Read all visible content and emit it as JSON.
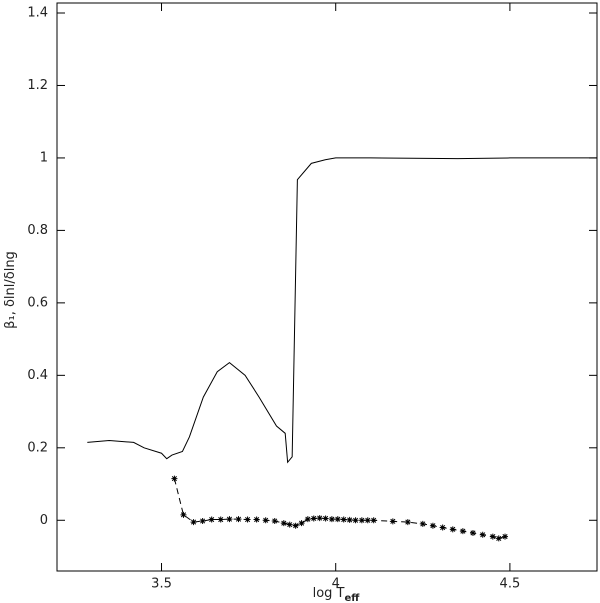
{
  "chart_data": {
    "type": "line",
    "xlabel": "log T",
    "xlabel_sub": "eff",
    "ylabel": "β₁, δlnl/δlng",
    "xlim": [
      3.2,
      4.75
    ],
    "ylim": [
      -0.14,
      1.4
    ],
    "xticks": [
      3.5,
      4,
      4.5
    ],
    "yticks": [
      0,
      0.2,
      0.4,
      0.6,
      0.8,
      1,
      1.2,
      1.4
    ],
    "series": [
      {
        "color": "#000000",
        "line_style": "solid",
        "marker": null,
        "x": [
          3.287,
          3.35,
          3.42,
          3.45,
          3.5,
          3.515,
          3.53,
          3.56,
          3.58,
          3.62,
          3.66,
          3.695,
          3.74,
          3.78,
          3.83,
          3.855,
          3.862,
          3.875,
          3.89,
          3.93,
          3.97,
          4.0,
          4.1,
          4.35,
          4.5,
          4.75
        ],
        "values": [
          0.215,
          0.22,
          0.215,
          0.2,
          0.185,
          0.17,
          0.18,
          0.19,
          0.23,
          0.34,
          0.41,
          0.435,
          0.4,
          0.34,
          0.26,
          0.24,
          0.16,
          0.175,
          0.94,
          0.985,
          0.995,
          1.0,
          1.0,
          0.998,
          1.0,
          1.0
        ]
      },
      {
        "color": "#000000",
        "line_style": "dashed",
        "marker": "*",
        "x": [
          3.537,
          3.563,
          3.592,
          3.618,
          3.644,
          3.67,
          3.695,
          3.721,
          3.747,
          3.773,
          3.799,
          3.825,
          3.851,
          3.868,
          3.885,
          3.902,
          3.92,
          3.937,
          3.954,
          3.971,
          3.989,
          4.006,
          4.023,
          4.04,
          4.057,
          4.075,
          4.092,
          4.109,
          4.164,
          4.207,
          4.25,
          4.279,
          4.307,
          4.336,
          4.365,
          4.394,
          4.422,
          4.451,
          4.468,
          4.486
        ],
        "values": [
          0.115,
          0.015,
          -0.005,
          -0.002,
          0.002,
          0.002,
          0.003,
          0.003,
          0.002,
          0.002,
          0.0,
          -0.002,
          -0.008,
          -0.012,
          -0.015,
          -0.008,
          0.003,
          0.005,
          0.006,
          0.005,
          0.003,
          0.003,
          0.002,
          0.001,
          0.0,
          0.0,
          0.0,
          0.0,
          -0.003,
          -0.005,
          -0.01,
          -0.015,
          -0.02,
          -0.025,
          -0.03,
          -0.035,
          -0.04,
          -0.045,
          -0.05,
          -0.045
        ]
      }
    ]
  }
}
